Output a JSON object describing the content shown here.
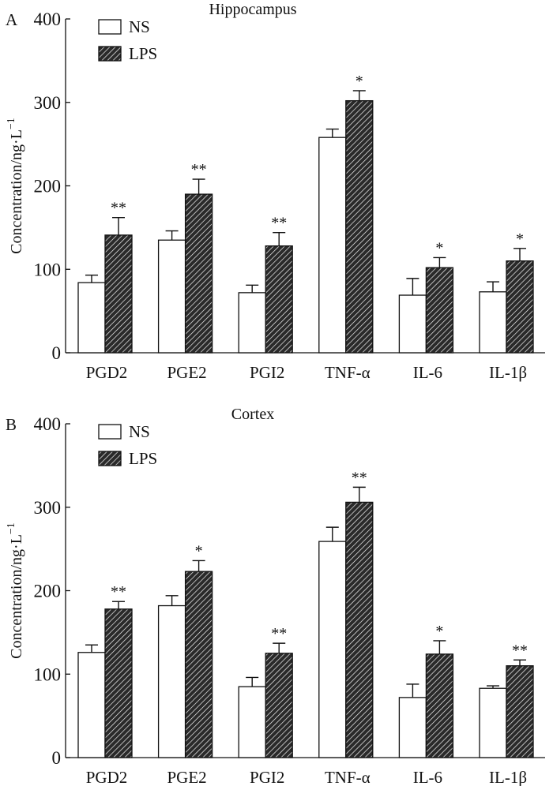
{
  "chart_data": [
    {
      "type": "bar",
      "panel_label": "A",
      "title": "Hippocampus",
      "xlabel": "",
      "ylabel": "Concentration/ng·L",
      "ylabel_sup": "−1",
      "ylim": [
        0,
        400
      ],
      "yticks": [
        "0",
        "100",
        "200",
        "300",
        "400"
      ],
      "legend": "top-left",
      "categories": [
        "PGD2",
        "PGE2",
        "PGI2",
        "TNF-α",
        "IL-6",
        "IL-1β"
      ],
      "series": [
        {
          "name": "NS",
          "values": [
            84,
            135,
            72,
            258,
            69,
            73
          ],
          "errors": [
            9,
            11,
            9,
            10,
            20,
            12
          ],
          "marks": [
            "",
            "",
            "",
            "",
            "",
            ""
          ]
        },
        {
          "name": "LPS",
          "values": [
            141,
            190,
            128,
            302,
            102,
            110
          ],
          "errors": [
            21,
            18,
            16,
            12,
            12,
            15
          ],
          "marks": [
            "**",
            "**",
            "**",
            "*",
            "*",
            "*"
          ]
        }
      ]
    },
    {
      "type": "bar",
      "panel_label": "B",
      "title": "Cortex",
      "xlabel": "",
      "ylabel": "Concentration/ng·L",
      "ylabel_sup": "−1",
      "ylim": [
        0,
        400
      ],
      "yticks": [
        "0",
        "100",
        "200",
        "300",
        "400"
      ],
      "legend": "top-left",
      "categories": [
        "PGD2",
        "PGE2",
        "PGI2",
        "TNF-α",
        "IL-6",
        "IL-1β"
      ],
      "series": [
        {
          "name": "NS",
          "values": [
            126,
            182,
            85,
            259,
            72,
            83
          ],
          "errors": [
            9,
            12,
            11,
            17,
            16,
            3
          ],
          "marks": [
            "",
            "",
            "",
            "",
            "",
            ""
          ]
        },
        {
          "name": "LPS",
          "values": [
            178,
            223,
            125,
            306,
            124,
            110
          ],
          "errors": [
            9,
            13,
            12,
            18,
            16,
            7
          ],
          "marks": [
            "**",
            "*",
            "**",
            "**",
            "*",
            "**"
          ]
        }
      ]
    }
  ]
}
